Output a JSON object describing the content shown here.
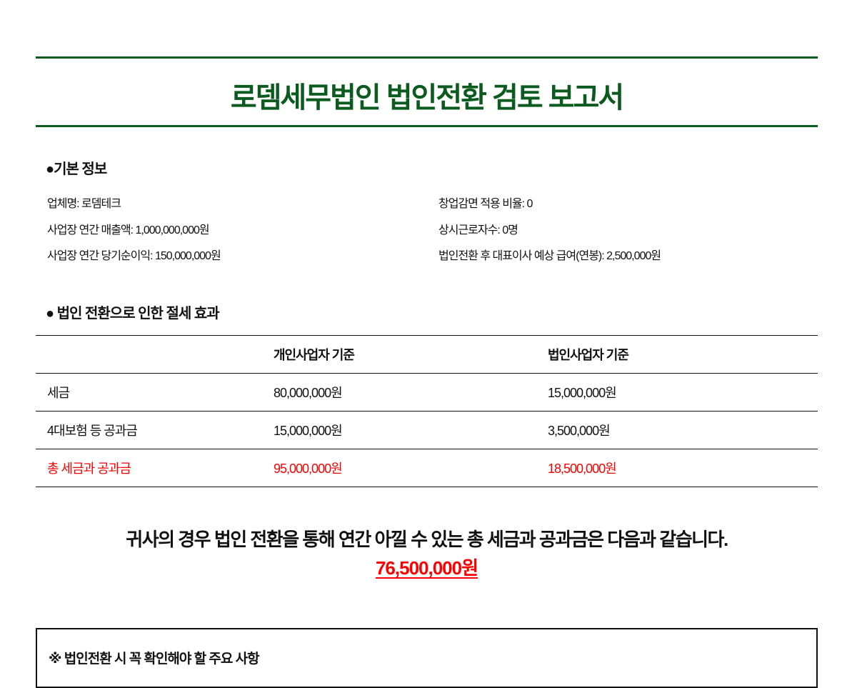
{
  "title": "로뎀세무법인 법인전환 검토 보고서",
  "colors": {
    "title": "#0b5a1e",
    "highlight": "#ff0000"
  },
  "basic_info": {
    "heading": "●기본 정보",
    "left": [
      "업체명: 로뎀테크",
      "사업장 연간 매출액: 1,000,000,000원",
      "사업장 연간 당기순이익: 150,000,000원"
    ],
    "right": [
      "창업감면 적용 비율: 0",
      "상시근로자수: 0명",
      "법인전환 후 대표이사 예상 급여(연봉): 2,500,000원"
    ]
  },
  "savings": {
    "heading": "● 법인 전환으로 인한 절세 효과",
    "columns": [
      "",
      "개인사업자 기준",
      "법인사업자 기준"
    ],
    "rows": [
      [
        "세금",
        "80,000,000원",
        "15,000,000원"
      ],
      [
        "4대보험 등 공과금",
        "15,000,000원",
        "3,500,000원"
      ],
      [
        "총 세금과 공과금",
        "95,000,000원",
        "18,500,000원"
      ]
    ]
  },
  "summary": {
    "text": "귀사의 경우 법인 전환을 통해 연간 아낄 수 있는 총 세금과 공과금은 다음과 같습니다.",
    "amount": "76,500,000원"
  },
  "notice": {
    "heading": "※ 법인전환 시 꼭 확인해야 할 주요 사항"
  }
}
